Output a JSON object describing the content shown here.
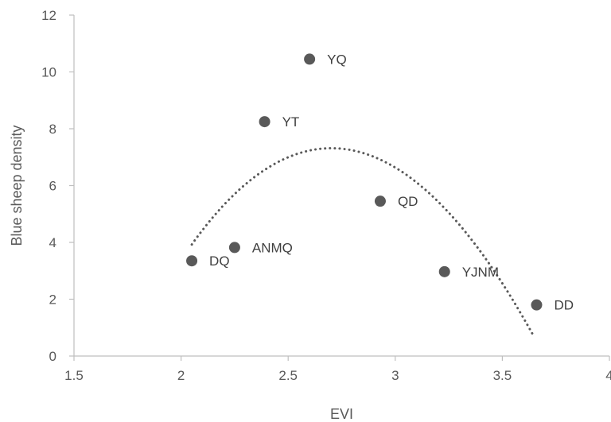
{
  "chart_data": {
    "type": "scatter",
    "xlabel": "EVI",
    "ylabel": "Blue sheep density",
    "xlim": [
      1.5,
      4
    ],
    "ylim": [
      0,
      12
    ],
    "xticks": [
      "1.5",
      "2",
      "2.5",
      "3",
      "3.5",
      "4"
    ],
    "yticks": [
      "0",
      "2",
      "4",
      "6",
      "8",
      "10",
      "12"
    ],
    "grid": false,
    "points": [
      {
        "label": "DQ",
        "x": 2.05,
        "y": 3.35
      },
      {
        "label": "ANMQ",
        "x": 2.25,
        "y": 3.82
      },
      {
        "label": "YT",
        "x": 2.39,
        "y": 8.25
      },
      {
        "label": "YQ",
        "x": 2.6,
        "y": 10.45
      },
      {
        "label": "QD",
        "x": 2.93,
        "y": 5.45
      },
      {
        "label": "YJNM",
        "x": 3.23,
        "y": 2.97
      },
      {
        "label": "DD",
        "x": 3.66,
        "y": 1.8
      }
    ],
    "trendline": {
      "type": "polynomial",
      "style": "dotted",
      "x_range": [
        2.05,
        3.65
      ],
      "samples": [
        {
          "x": 2.05,
          "y": 3.9
        },
        {
          "x": 2.35,
          "y": 6.4
        },
        {
          "x": 2.72,
          "y": 7.3
        },
        {
          "x": 3.1,
          "y": 6.0
        },
        {
          "x": 3.4,
          "y": 3.8
        },
        {
          "x": 3.65,
          "y": 0.6
        }
      ]
    },
    "colors": {
      "marker": "#595959",
      "trendline": "#595959",
      "axis": "#bfbfbf",
      "text": "#595959"
    }
  }
}
